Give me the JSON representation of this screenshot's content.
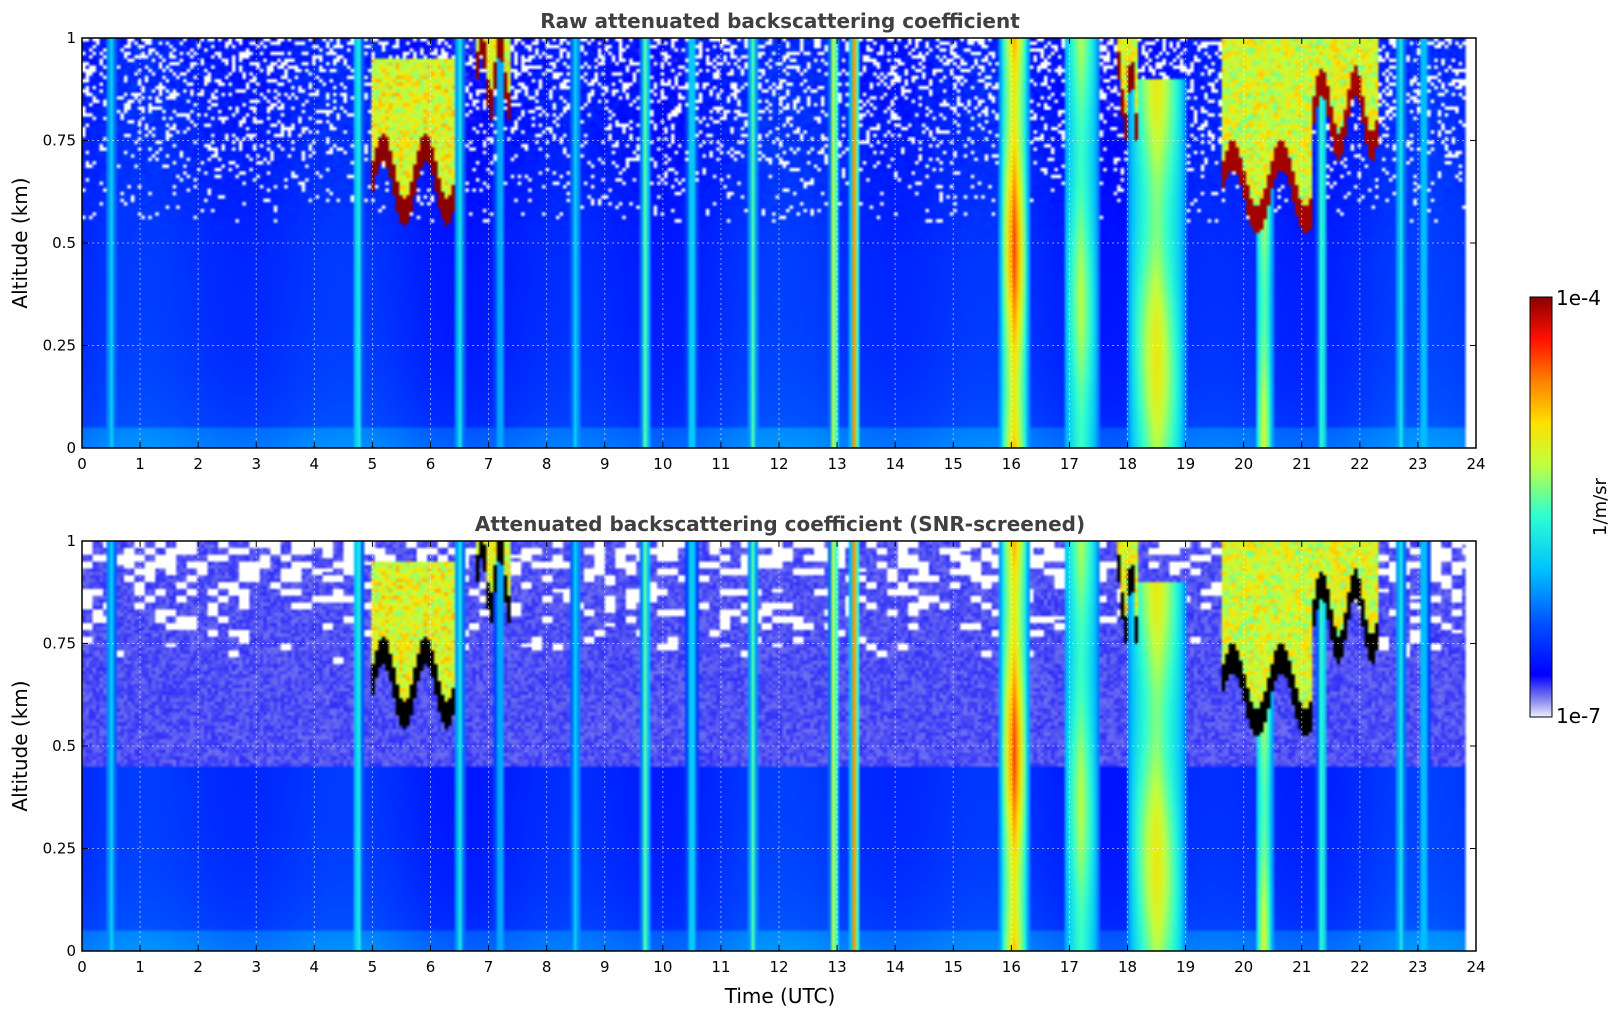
{
  "chart_data": [
    {
      "type": "heatmap",
      "title": "Raw attenuated backscattering coefficient",
      "ylabel": "Altitude (km)",
      "xlabel": "",
      "xlim": [
        0,
        24
      ],
      "ylim": [
        0,
        1
      ],
      "xticks": [
        "0",
        "1",
        "2",
        "3",
        "4",
        "5",
        "6",
        "7",
        "8",
        "9",
        "10",
        "11",
        "12",
        "13",
        "14",
        "15",
        "16",
        "17",
        "18",
        "19",
        "20",
        "21",
        "22",
        "23",
        "24"
      ],
      "yticks": [
        "0",
        "0.25",
        "0.5",
        "0.75",
        "1"
      ],
      "grid": true,
      "screened": false
    },
    {
      "type": "heatmap",
      "title": "Attenuated backscattering coefficient (SNR-screened)",
      "ylabel": "Altitude (km)",
      "xlabel": "Time (UTC)",
      "xlim": [
        0,
        24
      ],
      "ylim": [
        0,
        1
      ],
      "xticks": [
        "0",
        "1",
        "2",
        "3",
        "4",
        "5",
        "6",
        "7",
        "8",
        "9",
        "10",
        "11",
        "12",
        "13",
        "14",
        "15",
        "16",
        "17",
        "18",
        "19",
        "20",
        "21",
        "22",
        "23",
        "24"
      ],
      "yticks": [
        "0",
        "0.25",
        "0.5",
        "0.75",
        "1"
      ],
      "grid": true,
      "screened": true
    }
  ],
  "colorbar": {
    "label": "1/m/sr",
    "max_label": "1e-4",
    "min_label": "1e-7",
    "colormap": "jet",
    "scale": "log"
  },
  "data_end_time": 23.8,
  "vertical_streaks": [
    {
      "t": 0.5,
      "level": 0.4
    },
    {
      "t": 4.75,
      "level": 0.5
    },
    {
      "t": 6.5,
      "level": 0.45
    },
    {
      "t": 7.2,
      "level": 0.38
    },
    {
      "t": 8.5,
      "level": 0.4
    },
    {
      "t": 9.7,
      "level": 0.55
    },
    {
      "t": 10.5,
      "level": 0.45
    },
    {
      "t": 11.55,
      "level": 0.5
    },
    {
      "t": 12.95,
      "level": 0.7
    },
    {
      "t": 13.3,
      "level": 0.85
    },
    {
      "t": 21.35,
      "level": 0.55
    },
    {
      "t": 22.7,
      "level": 0.45
    },
    {
      "t": 23.1,
      "level": 0.42
    }
  ],
  "aerosol_layers": [
    {
      "t0": 15.8,
      "t1": 16.3,
      "level": 0.85,
      "top": 1.0
    },
    {
      "t0": 16.9,
      "t1": 17.5,
      "level": 0.6,
      "top": 1.0
    },
    {
      "t0": 18.0,
      "t1": 19.0,
      "level": 0.68,
      "top": 0.9
    },
    {
      "t0": 20.2,
      "t1": 20.5,
      "level": 0.65,
      "top": 1.0
    }
  ],
  "clouds": [
    {
      "t0": 5.0,
      "t1": 6.4,
      "base": 0.62,
      "top": 0.95,
      "level": 1.0
    },
    {
      "t0": 6.8,
      "t1": 7.4,
      "base": 0.88,
      "top": 1.0,
      "level": 1.0
    },
    {
      "t0": 17.8,
      "t1": 18.2,
      "base": 0.82,
      "top": 1.0,
      "level": 1.0
    },
    {
      "t0": 19.6,
      "t1": 21.2,
      "base": 0.6,
      "top": 1.0,
      "level": 0.98
    },
    {
      "t0": 21.2,
      "t1": 22.3,
      "base": 0.78,
      "top": 1.0,
      "level": 0.98
    }
  ]
}
